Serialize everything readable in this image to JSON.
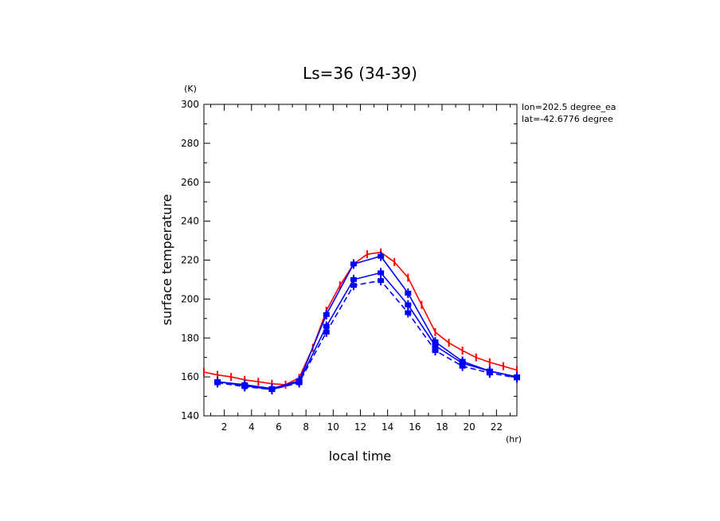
{
  "chart_data": {
    "type": "line",
    "title": "Ls=36 (34-39)",
    "xlabel": "local time",
    "ylabel": "surface temperature",
    "x_unit": "(hr)",
    "y_unit": "(K)",
    "xlim": [
      0.5,
      23.5
    ],
    "ylim": [
      140,
      300
    ],
    "x_ticks": [
      2,
      4,
      6,
      8,
      10,
      12,
      14,
      16,
      18,
      20,
      22
    ],
    "y_ticks": [
      140,
      160,
      180,
      200,
      220,
      240,
      260,
      280,
      300
    ],
    "annotations": [
      "lon=202.5 degree_ea",
      "lat=-42.6776 degree"
    ],
    "grid": false,
    "series": [
      {
        "color": "#ff0000",
        "style": "solid",
        "marker": "errorbar",
        "x": [
          0.5,
          1.5,
          2.5,
          3.5,
          4.5,
          5.5,
          6.5,
          7.5,
          8.5,
          9.5,
          10.5,
          11.5,
          12.5,
          13.5,
          14.5,
          15.5,
          16.5,
          17.5,
          18.5,
          19.5,
          20.5,
          21.5,
          22.5,
          23.5
        ],
        "values": [
          162.5,
          161,
          160,
          158.5,
          157.5,
          156.5,
          156,
          159.5,
          175,
          194,
          207,
          218,
          223,
          224,
          219,
          211,
          197,
          183,
          177.5,
          173.5,
          170,
          167.5,
          165.5,
          163.5
        ]
      },
      {
        "color": "#0000ff",
        "style": "solid",
        "marker": "errorbar",
        "x": [
          1.5,
          3.5,
          5.5,
          7.5,
          9.5,
          11.5,
          13.5,
          15.5,
          17.5,
          19.5,
          21.5,
          23.5
        ],
        "values": [
          157.5,
          156,
          154,
          158,
          192,
          218,
          222,
          203,
          178,
          168,
          163,
          160
        ]
      },
      {
        "color": "#0000ff",
        "style": "solid",
        "marker": "errorbar",
        "x": [
          1.5,
          3.5,
          5.5,
          7.5,
          9.5,
          11.5,
          13.5,
          15.5,
          17.5,
          19.5,
          21.5,
          23.5
        ],
        "values": [
          157.5,
          155.5,
          153.5,
          157.5,
          186,
          210,
          213.5,
          197,
          176,
          167,
          163,
          160
        ]
      },
      {
        "color": "#0000ff",
        "style": "dashed",
        "marker": "errorbar",
        "x": [
          1.5,
          3.5,
          5.5,
          7.5,
          9.5,
          11.5,
          13.5,
          15.5,
          17.5,
          19.5,
          21.5,
          23.5
        ],
        "values": [
          157,
          155,
          153.5,
          157,
          183,
          207,
          209.5,
          193,
          173.5,
          165.5,
          162,
          159.5
        ]
      }
    ]
  }
}
